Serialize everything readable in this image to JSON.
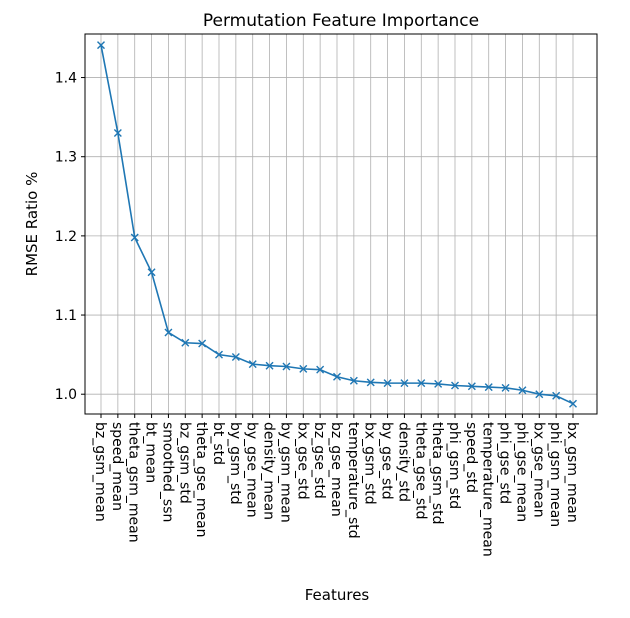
{
  "chart_data": {
    "type": "line",
    "title": "Permutation Feature Importance",
    "xlabel": "Features",
    "ylabel": "RMSE Ratio %",
    "grid": true,
    "ylim": [
      0.975,
      1.455
    ],
    "yticks": [
      1.0,
      1.1,
      1.2,
      1.3,
      1.4
    ],
    "ytick_labels": [
      "1.0",
      "1.1",
      "1.2",
      "1.3",
      "1.4"
    ],
    "marker": "x",
    "color": "#1f77b4",
    "categories": [
      "bz_gsm_mean",
      "speed_mean",
      "theta_gsm_mean",
      "bt_mean",
      "smoothed_ssn",
      "bz_gsm_std",
      "theta_gse_mean",
      "bt_std",
      "by_gsm_std",
      "by_gse_mean",
      "density_mean",
      "by_gsm_mean",
      "bx_gse_std",
      "bz_gse_std",
      "bz_gse_mean",
      "temperature_std",
      "bx_gsm_std",
      "by_gse_std",
      "density_std",
      "theta_gse_std",
      "theta_gsm_std",
      "phi_gsm_std",
      "speed_std",
      "temperature_mean",
      "phi_gse_std",
      "phi_gse_mean",
      "bx_gse_mean",
      "phi_gsm_mean",
      "bx_gsm_mean"
    ],
    "values": [
      1.441,
      1.33,
      1.198,
      1.154,
      1.078,
      1.065,
      1.064,
      1.05,
      1.047,
      1.038,
      1.036,
      1.035,
      1.032,
      1.031,
      1.022,
      1.017,
      1.015,
      1.014,
      1.014,
      1.014,
      1.013,
      1.011,
      1.01,
      1.009,
      1.008,
      1.005,
      1.0,
      0.998,
      0.988
    ]
  }
}
